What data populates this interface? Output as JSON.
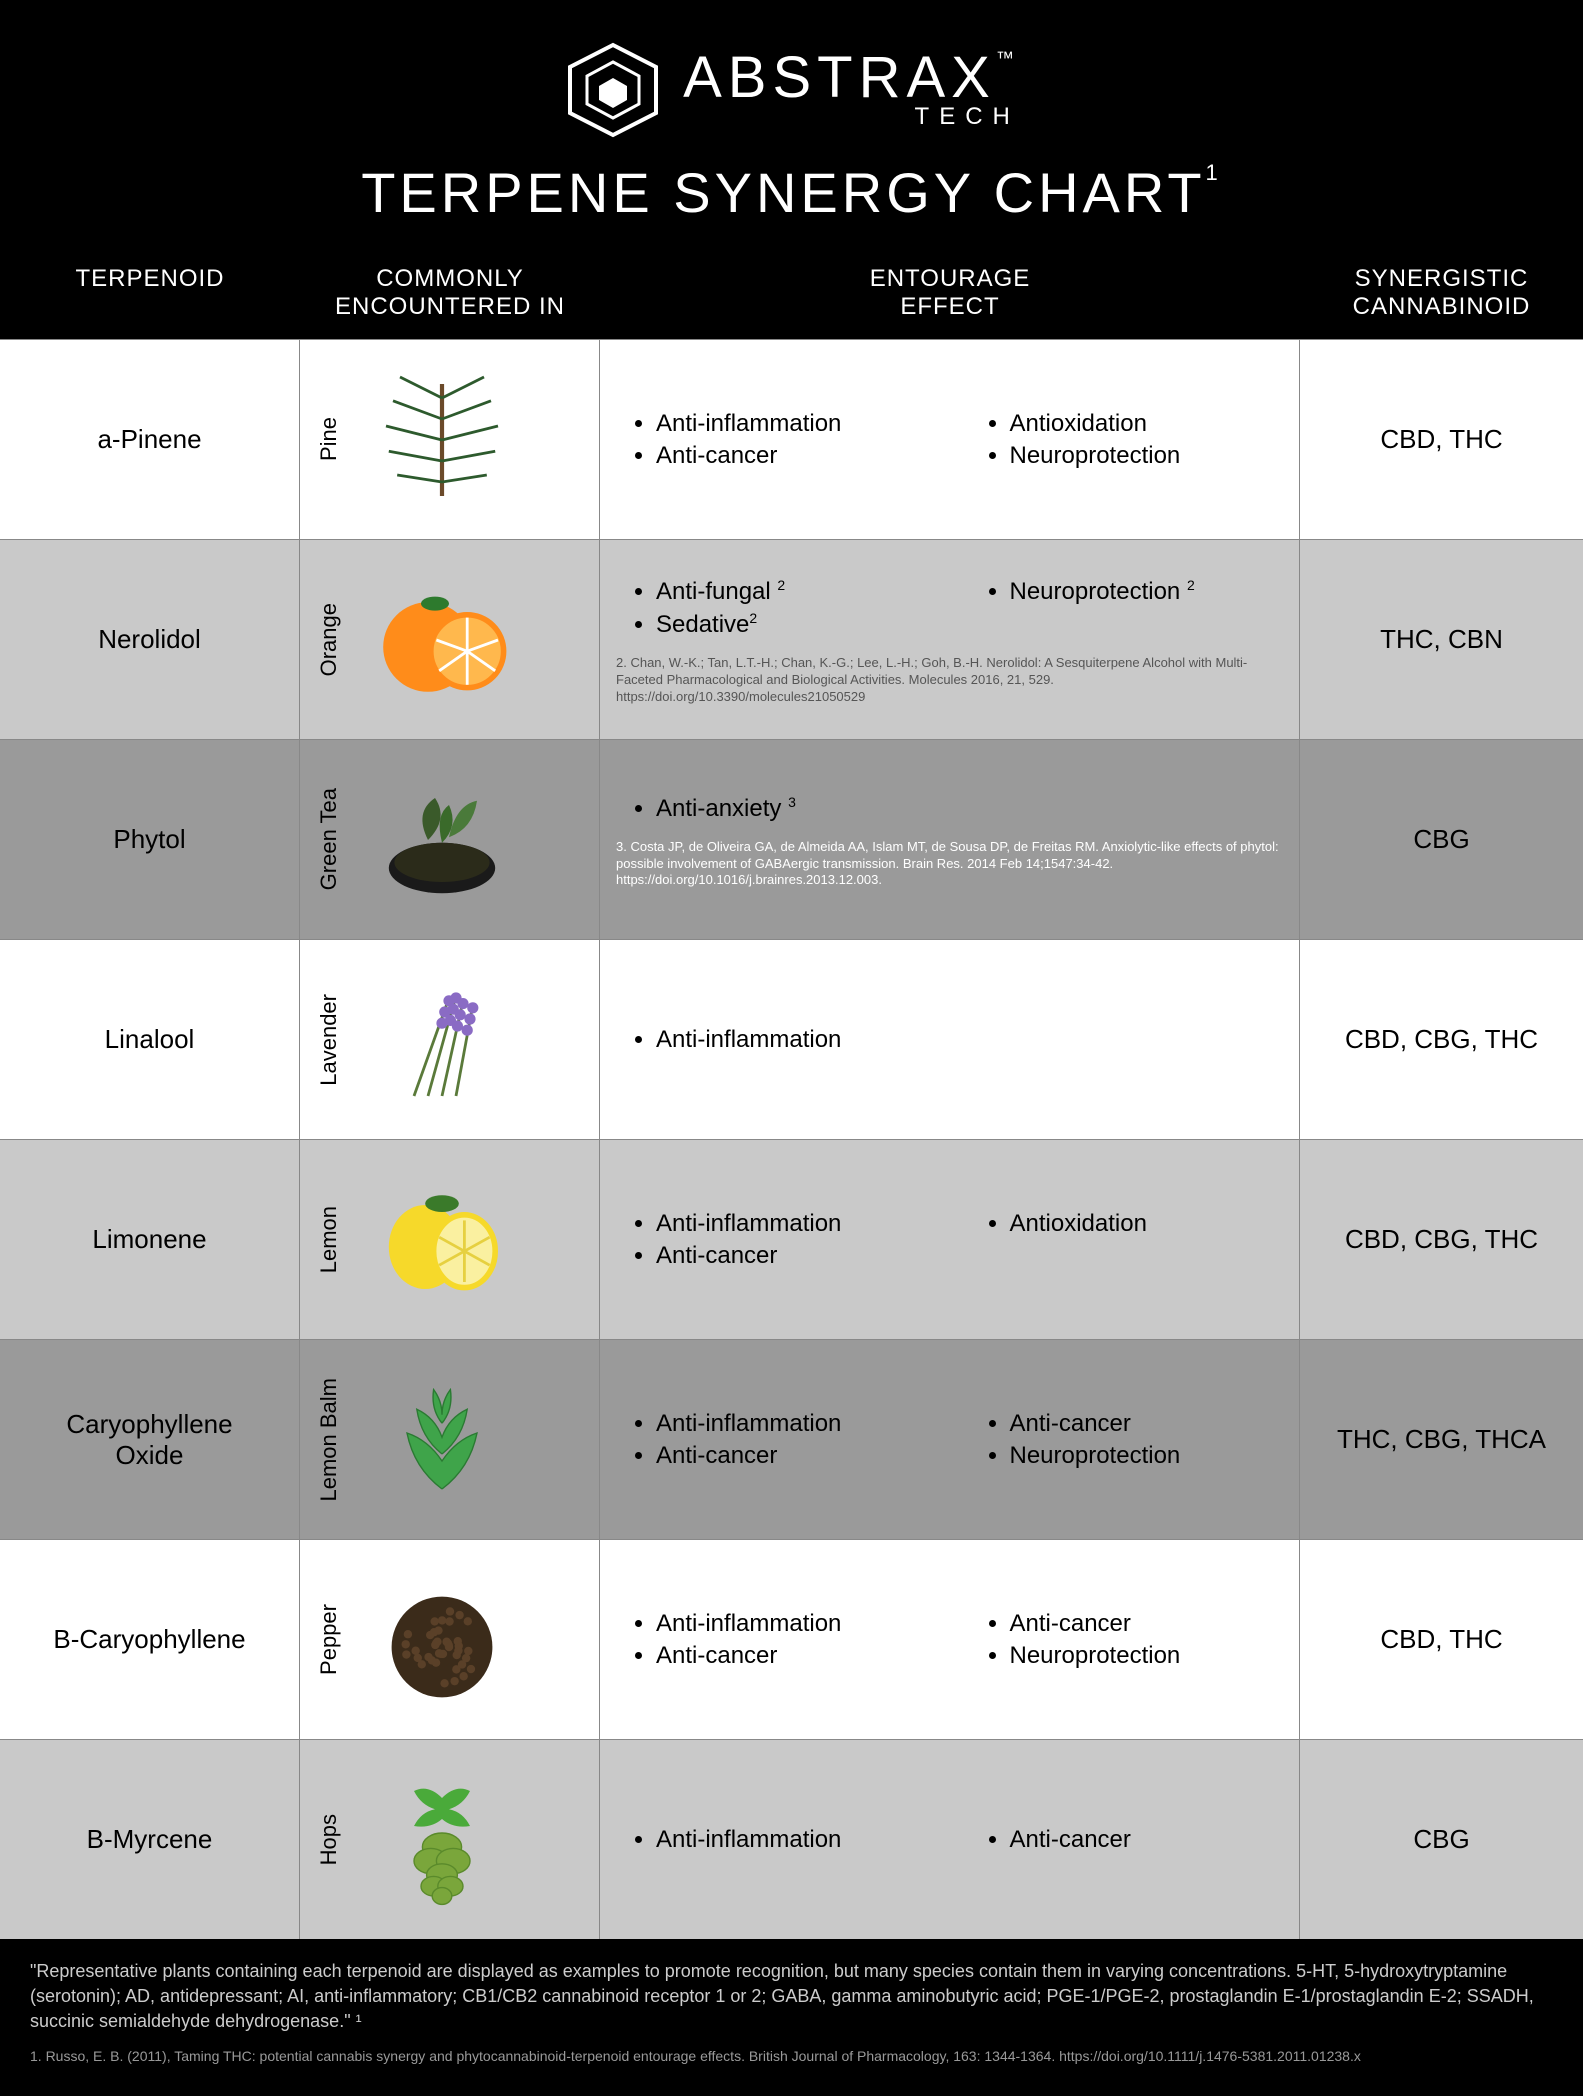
{
  "brand": {
    "name": "ABSTRAX",
    "tm": "™",
    "sub": "TECH"
  },
  "title": "TERPENE SYNERGY CHART",
  "title_sup": "1",
  "columns": {
    "terpenoid": "TERPENOID",
    "plant": "COMMONLY\nENCOUNTERED IN",
    "effect": "ENTOURAGE\nEFFECT",
    "cannabinoid": "SYNERGISTIC\nCANNABINOID"
  },
  "rows": [
    {
      "bg": "row-white",
      "terpenoid": "a-Pinene",
      "plant": "Pine",
      "plant_icon": "pine",
      "effects_left": [
        "Anti-inflammation",
        "Anti-cancer"
      ],
      "effects_right": [
        "Antioxidation",
        "Neuroprotection"
      ],
      "cannabinoid": "CBD, THC"
    },
    {
      "bg": "row-light",
      "terpenoid": "Nerolidol",
      "plant": "Orange",
      "plant_icon": "orange",
      "effects_left": [
        "Anti-fungal ²",
        "Sedative²"
      ],
      "effects_right": [
        "Neuroprotection ²"
      ],
      "citation": "2. Chan, W.-K.; Tan, L.T.-H.; Chan, K.-G.; Lee, L.-H.; Goh, B.-H.    Nerolidol: A Sesquiterpene Alcohol with Multi-Faceted Pharmacological and Biological Activities. Molecules 2016, 21, 529. https://doi.org/10.3390/molecules21050529",
      "cannabinoid": "THC, CBN"
    },
    {
      "bg": "row-dark",
      "terpenoid": "Phytol",
      "plant": "Green Tea",
      "plant_icon": "greentea",
      "effects_left": [
        "Anti-anxiety ³"
      ],
      "effects_right": [],
      "citation": "3. Costa JP, de Oliveira GA, de Almeida AA, Islam MT, de Sousa DP, de Freitas RM. Anxiolytic-like effects of phytol: possible involvement of GABAergic transmission. Brain Res. 2014 Feb 14;1547:34-42. https://doi.org/10.1016/j.brainres.2013.12.003.",
      "cannabinoid": "CBG"
    },
    {
      "bg": "row-white",
      "terpenoid": "Linalool",
      "plant": "Lavender",
      "plant_icon": "lavender",
      "effects_left": [
        "Anti-inflammation"
      ],
      "effects_right": [],
      "cannabinoid": "CBD, CBG, THC"
    },
    {
      "bg": "row-light",
      "terpenoid": "Limonene",
      "plant": "Lemon",
      "plant_icon": "lemon",
      "effects_left": [
        "Anti-inflammation",
        "Anti-cancer"
      ],
      "effects_right": [
        "Antioxidation"
      ],
      "cannabinoid": "CBD, CBG, THC"
    },
    {
      "bg": "row-dark",
      "terpenoid": "Caryophyllene\nOxide",
      "plant": "Lemon Balm",
      "plant_icon": "lemonbalm",
      "effects_left": [
        "Anti-inflammation",
        "Anti-cancer"
      ],
      "effects_right": [
        "Anti-cancer",
        "Neuroprotection"
      ],
      "cannabinoid": "THC, CBG, THCA"
    },
    {
      "bg": "row-white",
      "terpenoid": "B-Caryophyllene",
      "plant": "Pepper",
      "plant_icon": "pepper",
      "effects_left": [
        "Anti-inflammation",
        "Anti-cancer"
      ],
      "effects_right": [
        "Anti-cancer",
        "Neuroprotection"
      ],
      "cannabinoid": "CBD, THC"
    },
    {
      "bg": "row-light",
      "terpenoid": "B-Myrcene",
      "plant": "Hops",
      "plant_icon": "hops",
      "effects_left": [
        "Anti-inflammation"
      ],
      "effects_right": [
        "Anti-cancer"
      ],
      "cannabinoid": "CBG"
    }
  ],
  "footer_main": "\"Representative plants containing each terpenoid are displayed as examples to promote recognition, but many species contain them in varying concentrations. 5-HT, 5-hydroxytryptamine (serotonin); AD, antidepressant; AI, anti-inflammatory; CB1/CB2 cannabinoid receptor 1 or 2; GABA, gamma aminobutyric acid; PGE-1/PGE-2, prostaglandin E-1/prostaglandin E-2; SSADH, succinic semialdehyde dehydrogenase.\" ¹",
  "footer_ref": "1. Russo, E. B. (2011), Taming THC: potential cannabis synergy and phytocannabinoid-terpenoid entourage effects. British Journal of Pharmacology, 163: 1344-1364. https://doi.org/10.1111/j.1476-5381.2011.01238.x",
  "colors": {
    "white": "#ffffff",
    "light": "#c9c9c9",
    "dark": "#9a9a9a",
    "black": "#000000"
  },
  "plant_colors": {
    "pine": "#2d5a2d",
    "orange": "#ff8c1a",
    "greentea": "#3a5a2a",
    "lavender": "#8a6bc4",
    "lemon": "#f6d92a",
    "lemonbalm": "#3fa44a",
    "pepper": "#3b2b1a",
    "hops": "#7aa63b"
  }
}
